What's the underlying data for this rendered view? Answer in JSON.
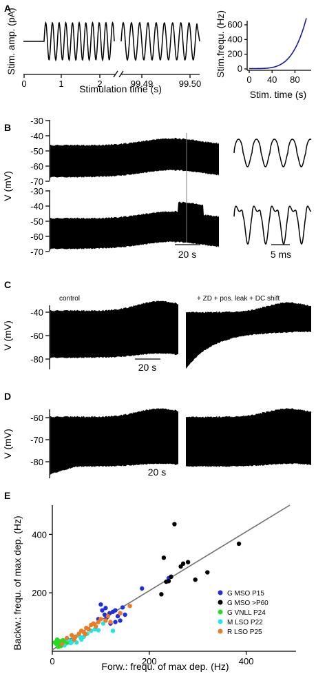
{
  "panels": {
    "A": {
      "letter": "A",
      "ylabel": "Stim. amp. (pA)",
      "xlabel": "Stimulation time (s)",
      "xticks": [
        "0",
        "1",
        "2",
        "99.49",
        "99.50"
      ],
      "inset": {
        "ylabel": "Stim.frequ. (Hz)",
        "xlabel": "Stim. time (s)",
        "yticks": [
          "0",
          "200",
          "400",
          "600"
        ],
        "xticks": [
          "0",
          "40",
          "80"
        ],
        "line_color": "#1a1aa0"
      }
    },
    "B": {
      "letter": "B",
      "ylabel": "V (mV)",
      "yticks_top": [
        "-30",
        "-40",
        "-50",
        "-60",
        "-70"
      ],
      "yticks_bottom": [
        "-30",
        "-40",
        "-50",
        "-60",
        "-70"
      ],
      "scale_long": "20 s",
      "scale_short": "5 ms"
    },
    "C": {
      "letter": "C",
      "ylabel": "V (mV)",
      "yticks": [
        "-40",
        "-60",
        "-80"
      ],
      "label_left": "control",
      "label_right": "+ ZD + pos. leak + DC shift",
      "scale": "20 s"
    },
    "D": {
      "letter": "D",
      "ylabel": "V (mV)",
      "yticks": [
        "-60",
        "-70",
        "-80"
      ],
      "scale": "20 s"
    },
    "E": {
      "letter": "E"
    }
  },
  "chart_data": {
    "type": "scatter",
    "xlabel": "Forw.: frequ. of max dep. (Hz)",
    "ylabel": "Backw.: frequ. of max dep. (Hz)",
    "xlim": [
      0,
      500
    ],
    "ylim": [
      0,
      500
    ],
    "xticks": [
      0,
      200,
      400
    ],
    "yticks": [
      200,
      400
    ],
    "fit_line": {
      "x": [
        0,
        490
      ],
      "y": [
        5,
        500
      ],
      "color": "#707070"
    },
    "series": [
      {
        "name": "G  MSO P15",
        "color": "#1f2fe0",
        "x": [
          100,
          103,
          110,
          118,
          125,
          130,
          135,
          140,
          145,
          150,
          130,
          120,
          112,
          140,
          240,
          245,
          185,
          95,
          108
        ],
        "y": [
          160,
          140,
          148,
          130,
          135,
          140,
          120,
          130,
          150,
          125,
          100,
          95,
          115,
          105,
          250,
          255,
          215,
          110,
          125
        ]
      },
      {
        "name": "G  MSO >P60",
        "color": "#000000",
        "x": [
          230,
          240,
          252,
          245,
          265,
          270,
          280,
          295,
          320,
          385,
          225,
          235
        ],
        "y": [
          320,
          240,
          435,
          255,
          290,
          300,
          305,
          245,
          270,
          368,
          195,
          238
        ]
      },
      {
        "name": "G  VNLL P24",
        "color": "#22dd22",
        "x": [
          5,
          8,
          10,
          12,
          14,
          16,
          18,
          20,
          22,
          24,
          26,
          28,
          30,
          33,
          36,
          40,
          12,
          18
        ],
        "y": [
          30,
          25,
          40,
          20,
          35,
          28,
          22,
          30,
          38,
          24,
          33,
          27,
          36,
          30,
          34,
          32,
          15,
          18
        ]
      },
      {
        "name": "M  LSO P22",
        "color": "#22e5e5",
        "x": [
          25,
          32,
          40,
          45,
          50,
          55,
          60,
          65,
          72,
          80,
          88,
          95,
          105,
          125,
          38,
          58
        ],
        "y": [
          20,
          40,
          35,
          45,
          30,
          55,
          40,
          50,
          60,
          70,
          75,
          72,
          95,
          70,
          28,
          48
        ]
      },
      {
        "name": "R  LSO P25",
        "color": "#ee7a22",
        "x": [
          20,
          30,
          40,
          48,
          55,
          60,
          65,
          70,
          75,
          80,
          85,
          90,
          95,
          100,
          110,
          115,
          120,
          140,
          160,
          45,
          68
        ],
        "y": [
          25,
          45,
          55,
          50,
          60,
          70,
          65,
          80,
          75,
          90,
          95,
          85,
          100,
          110,
          105,
          120,
          100,
          130,
          155,
          40,
          58
        ]
      }
    ]
  }
}
